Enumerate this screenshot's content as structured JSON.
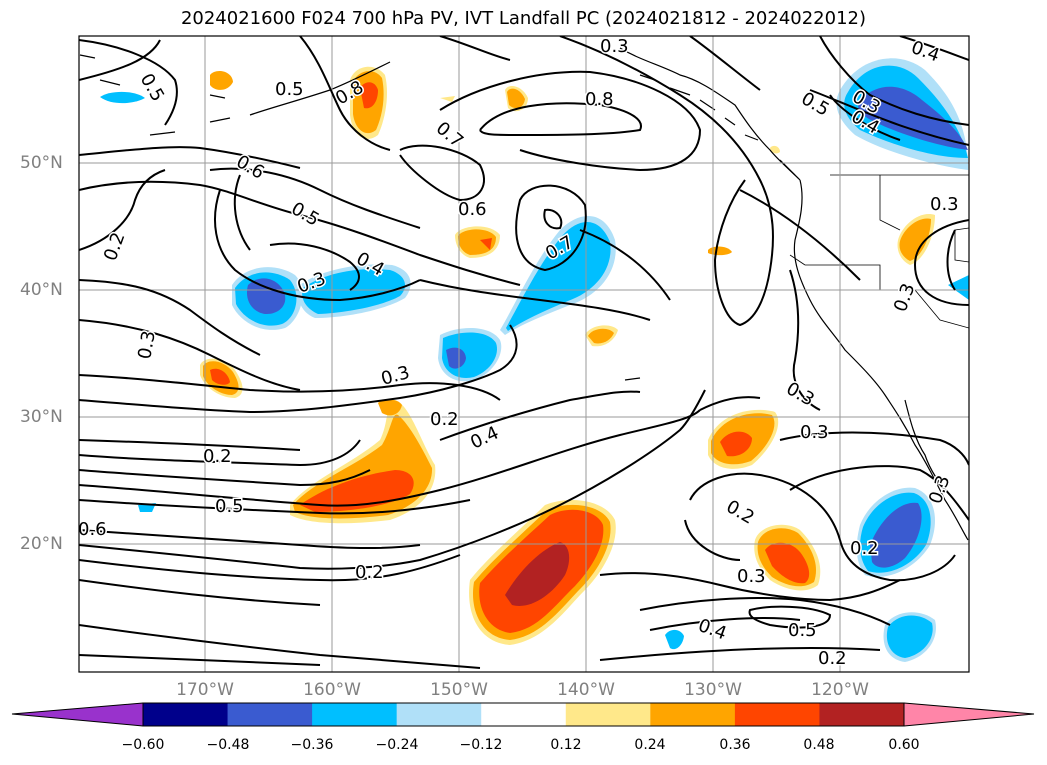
{
  "title": "2024021600 F024 700 hPa PV, IVT Landfall PC (2024021812 - 2024022012)",
  "longitude_labels": [
    "170°W",
    "160°W",
    "150°W",
    "140°W",
    "130°W",
    "120°W"
  ],
  "latitude_labels": [
    "50°N",
    "40°N",
    "30°N",
    "20°N"
  ],
  "contour_labels": [
    "0.5",
    "0.8",
    "0.7",
    "0.8",
    "0.6",
    "0.5",
    "0.4",
    "0.3",
    "0.2",
    "0.3",
    "0.3",
    "0.2",
    "0.6",
    "0.7",
    "0.4",
    "0.2",
    "0.5",
    "0.6",
    "0.2",
    "0.3",
    "0.3",
    "0.2",
    "0.3",
    "0.4",
    "0.5",
    "0.2",
    "0.2",
    "0.3",
    "0.5",
    "0.3",
    "0.4",
    "0.4",
    "0.5",
    "0.3",
    "0.3",
    "0.3"
  ],
  "colorbar": {
    "ticks": [
      "−0.60",
      "−0.48",
      "−0.36",
      "−0.24",
      "−0.12",
      "0.12",
      "0.24",
      "0.36",
      "0.48",
      "0.60"
    ],
    "colors": [
      "#9932cc",
      "#00008b",
      "#3a5bd0",
      "#00bfff",
      "#b0e0f8",
      "#ffffff",
      "#ffe88a",
      "#ffa500",
      "#ff4500",
      "#b22222",
      "#ff85a8"
    ]
  },
  "fill_colors": {
    "c_minus_048": "#3a5bd0",
    "c_minus_036": "#00bfff",
    "c_minus_024": "#b0e0f8",
    "c_plus_012": "#ffe88a",
    "c_plus_024": "#ffa500",
    "c_plus_036": "#ff4500",
    "c_plus_048": "#b22222"
  }
}
